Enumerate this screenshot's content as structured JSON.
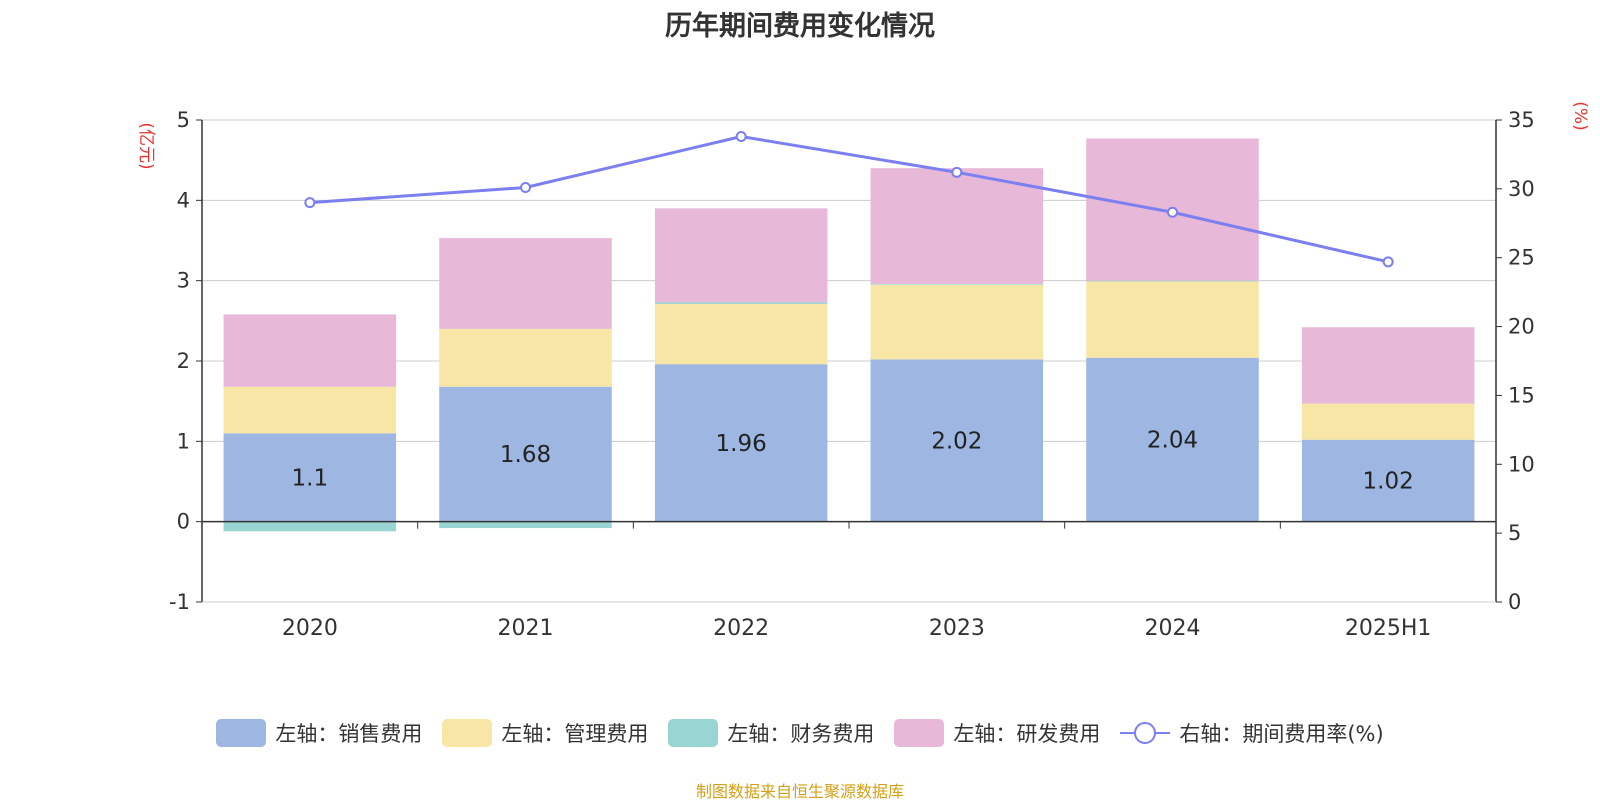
{
  "chart_data": {
    "type": "bar",
    "title": "历年期间费用变化情况",
    "categories": [
      "2020",
      "2021",
      "2022",
      "2023",
      "2024",
      "2025H1"
    ],
    "left_axis": {
      "unit_label": "(亿元)",
      "ylim": [
        -1,
        5
      ],
      "ticks": [
        -1,
        0,
        1,
        2,
        3,
        4,
        5
      ]
    },
    "right_axis": {
      "unit_label": "(%)",
      "ylim": [
        0,
        35
      ],
      "ticks": [
        0,
        5,
        10,
        15,
        20,
        25,
        30,
        35
      ]
    },
    "stacked": true,
    "series": [
      {
        "name": "左轴：销售费用",
        "axis": "left",
        "type": "bar",
        "color": "#9db7e2",
        "values": [
          1.1,
          1.68,
          1.96,
          2.02,
          2.04,
          1.02
        ],
        "labels": [
          "1.1",
          "1.68",
          "1.96",
          "2.02",
          "2.04",
          "1.02"
        ]
      },
      {
        "name": "左轴：管理费用",
        "axis": "left",
        "type": "bar",
        "color": "#f7e6a6",
        "values": [
          0.58,
          0.72,
          0.75,
          0.93,
          0.95,
          0.45
        ]
      },
      {
        "name": "左轴：财务费用",
        "axis": "left",
        "type": "bar",
        "color": "#98d5d3",
        "values": [
          -0.12,
          -0.08,
          0.02,
          0.01,
          0.01,
          0.0
        ]
      },
      {
        "name": "左轴：研发费用",
        "axis": "left",
        "type": "bar",
        "color": "#e7b8d8",
        "values": [
          0.9,
          1.13,
          1.17,
          1.44,
          1.77,
          0.95
        ]
      },
      {
        "name": "右轴：期间费用率(%)",
        "axis": "right",
        "type": "line",
        "color": "#7b7ff0",
        "values": [
          29.0,
          30.1,
          33.8,
          31.2,
          28.3,
          24.7
        ]
      }
    ],
    "grid": true,
    "legend_position": "bottom"
  },
  "colors": {
    "axis_unit": "#e8322d",
    "source": "#d4a017",
    "grid": "#cccccc"
  },
  "source_note": "制图数据来自恒生聚源数据库"
}
